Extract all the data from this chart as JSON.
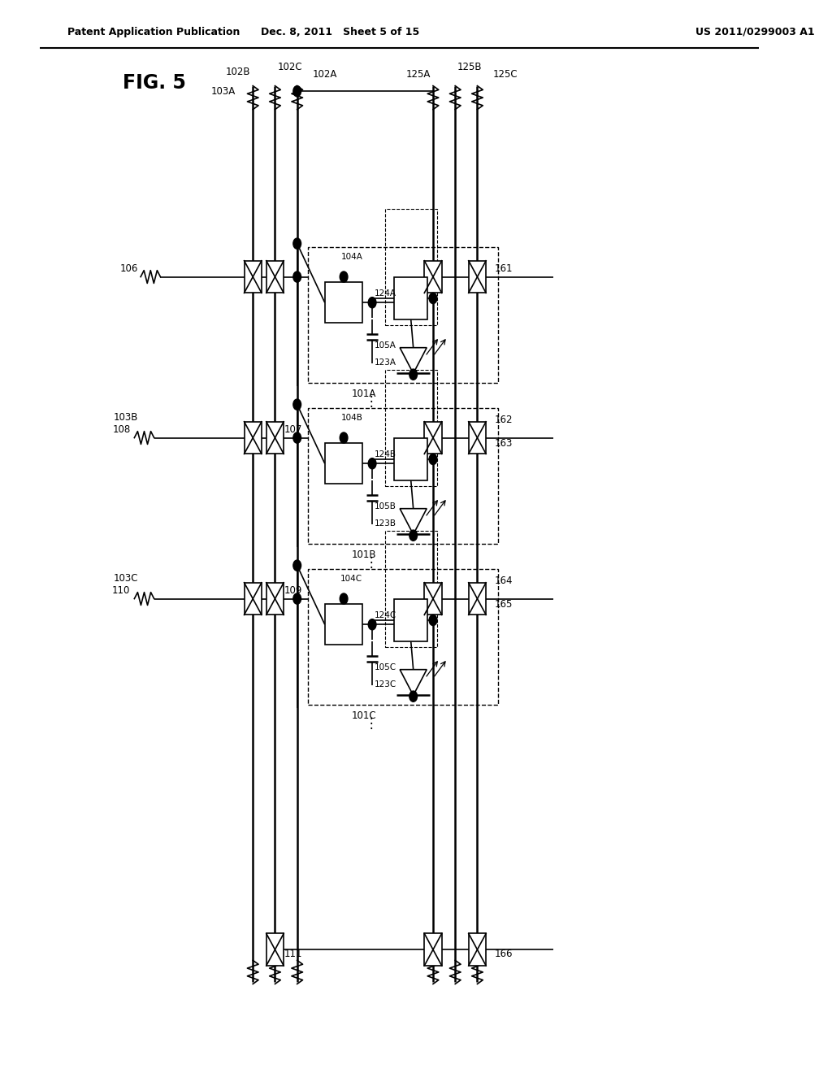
{
  "header_left": "Patent Application Publication",
  "header_mid": "Dec. 8, 2011   Sheet 5 of 15",
  "header_right": "US 2011/0299003 A1",
  "bg_color": "#ffffff",
  "fig_label": "FIG. 5"
}
